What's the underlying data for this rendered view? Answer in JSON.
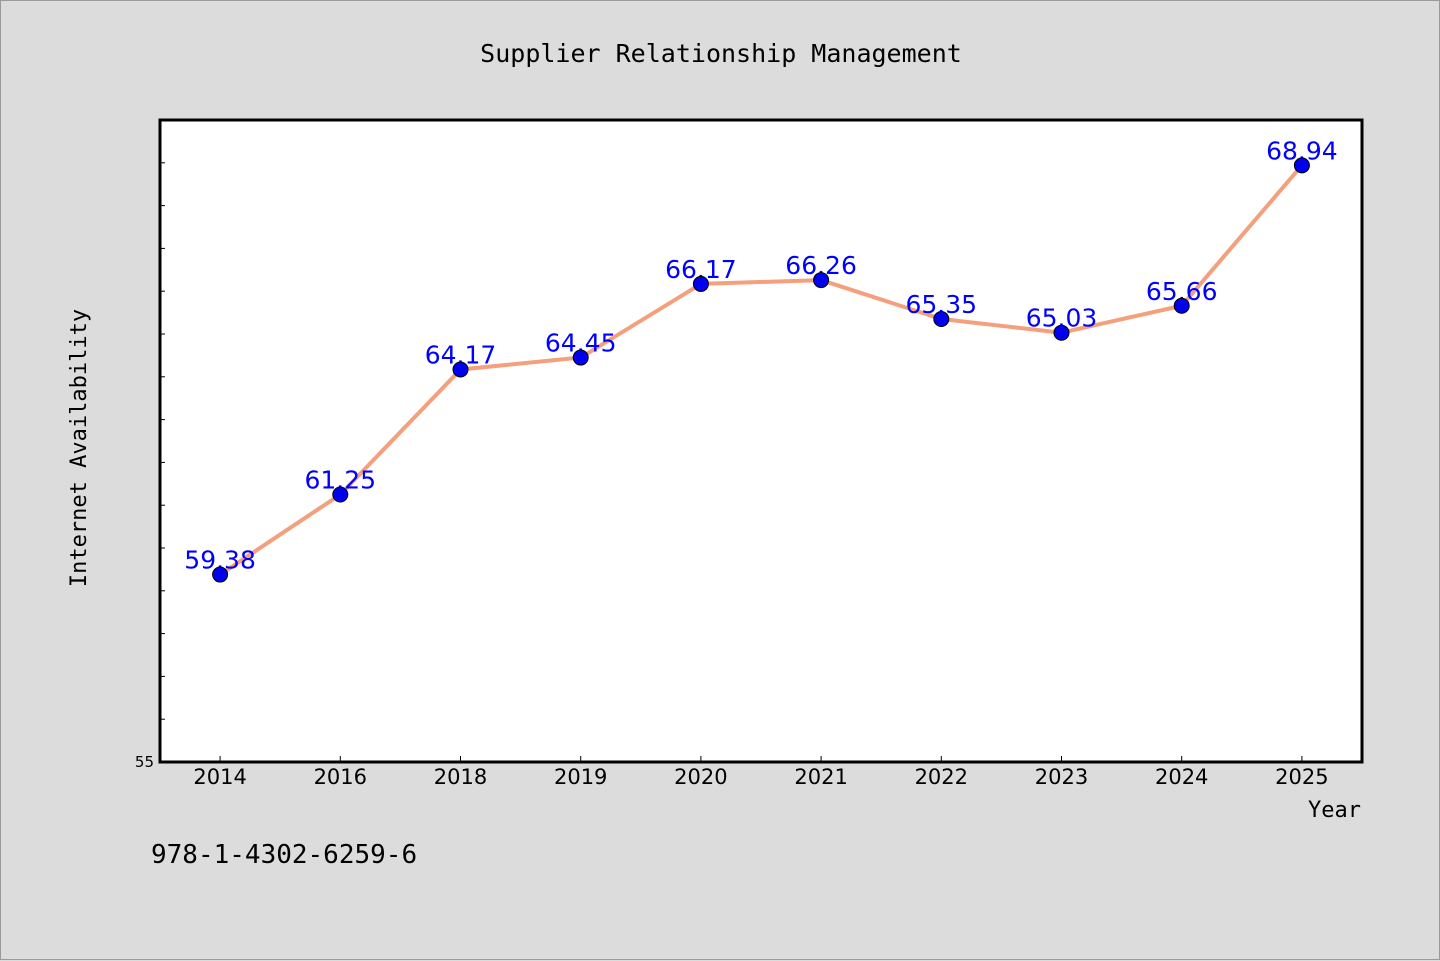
{
  "chart_data": {
    "type": "line",
    "title": "Supplier Relationship Management",
    "xlabel": "Year",
    "ylabel": "Internet Availability",
    "categories": [
      "2014",
      "2016",
      "2018",
      "2019",
      "2020",
      "2021",
      "2022",
      "2023",
      "2024",
      "2025"
    ],
    "series": [
      {
        "values": [
          59.38,
          61.25,
          64.17,
          64.45,
          66.17,
          66.26,
          65.35,
          65.03,
          65.66,
          68.94
        ],
        "labels": [
          "59.38",
          "61.25",
          "64.17",
          "64.45",
          "66.17",
          "66.26",
          "65.35",
          "65.03",
          "65.66",
          "68.94"
        ]
      }
    ],
    "ylim": [
      55,
      70
    ],
    "y_tick_labels": [
      "55"
    ],
    "grid": false,
    "legend": "none",
    "colors": {
      "line": "#f4a07c",
      "marker": "#0000ee",
      "data_label": "#0000ff",
      "background": "#dcdcdc",
      "plot_background": "#ffffff"
    }
  },
  "footer": {
    "code": "978-1-4302-6259-6"
  }
}
